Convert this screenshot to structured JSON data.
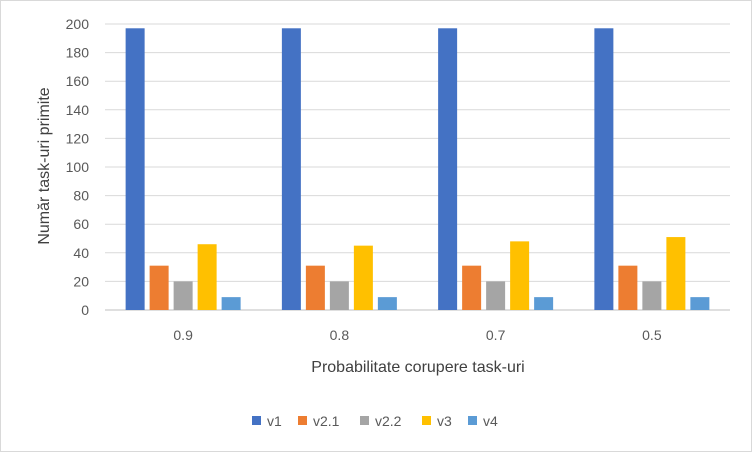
{
  "chart_data": {
    "type": "bar",
    "title": "",
    "xlabel": "Probabilitate corupere task-uri",
    "ylabel": "Număr task-uri primite",
    "categories": [
      "0.9",
      "0.8",
      "0.7",
      "0.5"
    ],
    "ylim": [
      0,
      200
    ],
    "yticks": [
      0,
      20,
      40,
      60,
      80,
      100,
      120,
      140,
      160,
      180,
      200
    ],
    "grid": true,
    "legend_position": "bottom",
    "series": [
      {
        "name": "v1",
        "color": "#4472C4",
        "values": [
          197,
          197,
          197,
          197
        ]
      },
      {
        "name": "v2.1",
        "color": "#ED7D31",
        "values": [
          31,
          31,
          31,
          31
        ]
      },
      {
        "name": "v2.2",
        "color": "#A5A5A5",
        "values": [
          20,
          20,
          20,
          20
        ]
      },
      {
        "name": "v3",
        "color": "#FFC000",
        "values": [
          46,
          45,
          48,
          51
        ]
      },
      {
        "name": "v4",
        "color": "#5B9BD5",
        "values": [
          9,
          9,
          9,
          9
        ]
      }
    ]
  }
}
